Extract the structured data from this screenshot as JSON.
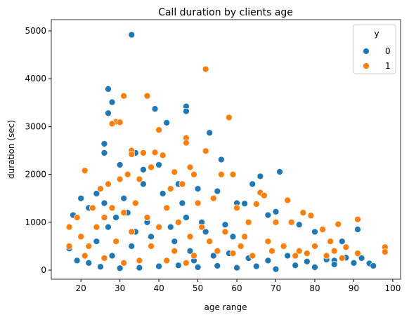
{
  "chart_data": {
    "type": "scatter",
    "title": "Call duration by clients age",
    "x_label": "age range",
    "y_label": "duration (sec)",
    "legend_title": "y",
    "legend_position": "upper right",
    "xlim": [
      12.4,
      102
    ],
    "ylim": [
      -190,
      5235
    ],
    "xticks": [
      20,
      30,
      40,
      50,
      60,
      70,
      80,
      90,
      100
    ],
    "yticks": [
      0,
      1000,
      2000,
      3000,
      4000,
      5000
    ],
    "series": [
      {
        "name": "0",
        "color": "#1f77b4",
        "x": [
          33,
          27,
          28,
          27,
          39,
          47,
          47,
          42,
          53,
          26,
          26,
          34,
          56,
          64,
          66,
          71,
          62,
          68,
          70,
          76,
          80,
          91,
          92,
          94,
          95,
          87,
          85,
          17,
          18,
          20,
          22,
          24,
          30,
          36,
          40,
          45,
          50,
          55,
          60,
          35,
          40,
          45,
          50,
          55,
          30,
          25,
          60,
          65,
          70,
          75,
          80,
          85,
          90,
          19,
          22,
          28,
          33,
          38,
          43,
          48,
          53,
          58,
          63,
          68,
          73,
          78,
          83,
          88,
          32,
          37,
          42,
          47,
          52,
          57,
          27,
          24,
          29,
          34,
          44,
          49,
          54,
          59,
          31,
          41,
          46,
          51,
          36,
          26
        ],
        "values": [
          4918,
          3785,
          3510,
          3280,
          3370,
          3422,
          3320,
          3080,
          2870,
          2640,
          2450,
          2450,
          2310,
          1800,
          1960,
          2055,
          1390,
          1150,
          1220,
          950,
          800,
          850,
          250,
          140,
          90,
          600,
          200,
          450,
          1150,
          1500,
          1300,
          1600,
          2200,
          2100,
          2200,
          1800,
          1700,
          1650,
          1400,
          50,
          80,
          100,
          60,
          90,
          40,
          70,
          50,
          80,
          20,
          100,
          60,
          120,
          150,
          200,
          150,
          300,
          500,
          700,
          900,
          400,
          600,
          350,
          250,
          200,
          300,
          180,
          220,
          260,
          1200,
          1000,
          1300,
          1100,
          800,
          950,
          900,
          600,
          1100,
          800,
          600,
          200,
          300,
          700,
          1500,
          1600,
          1400,
          1000,
          1800,
          1400
        ]
      },
      {
        "name": "1",
        "color": "#ff7f0e",
        "x": [
          52,
          31,
          37,
          29,
          28,
          30,
          58,
          47,
          47,
          40,
          33,
          33,
          36,
          39,
          41,
          52,
          21,
          44,
          49,
          56,
          59,
          38,
          48,
          66,
          67,
          73,
          77,
          79,
          65,
          70,
          74,
          82,
          86,
          91,
          91,
          98,
          98,
          88,
          84,
          17,
          17,
          19,
          23,
          25,
          27,
          30,
          32,
          35,
          43,
          46,
          50,
          54,
          60,
          63,
          62,
          68,
          72,
          76,
          80,
          85,
          20,
          22,
          24,
          26,
          28,
          31,
          34,
          37,
          40,
          42,
          45,
          48,
          51,
          53,
          57,
          61,
          64,
          69,
          75,
          78,
          83,
          87,
          21,
          29,
          33,
          38,
          44,
          49,
          55,
          59,
          35,
          26,
          31,
          42,
          47
        ],
        "values": [
          4200,
          3640,
          3640,
          3100,
          3060,
          3090,
          3190,
          2760,
          2660,
          2930,
          2500,
          2420,
          2450,
          2460,
          2400,
          2490,
          2080,
          2050,
          2000,
          2000,
          2000,
          2150,
          2150,
          1620,
          1560,
          1460,
          1200,
          1140,
          1380,
          1000,
          1000,
          850,
          960,
          1060,
          350,
          480,
          380,
          480,
          600,
          900,
          500,
          1100,
          1300,
          1700,
          1800,
          1900,
          2000,
          1900,
          1700,
          1800,
          1400,
          1500,
          1300,
          1000,
          700,
          600,
          500,
          400,
          500,
          400,
          700,
          500,
          900,
          1100,
          1300,
          1200,
          1400,
          1100,
          900,
          1300,
          1000,
          700,
          900,
          600,
          800,
          500,
          300,
          400,
          300,
          350,
          300,
          250,
          300,
          600,
          800,
          500,
          400,
          300,
          400,
          350,
          200,
          250,
          150,
          200,
          150
        ]
      }
    ]
  }
}
